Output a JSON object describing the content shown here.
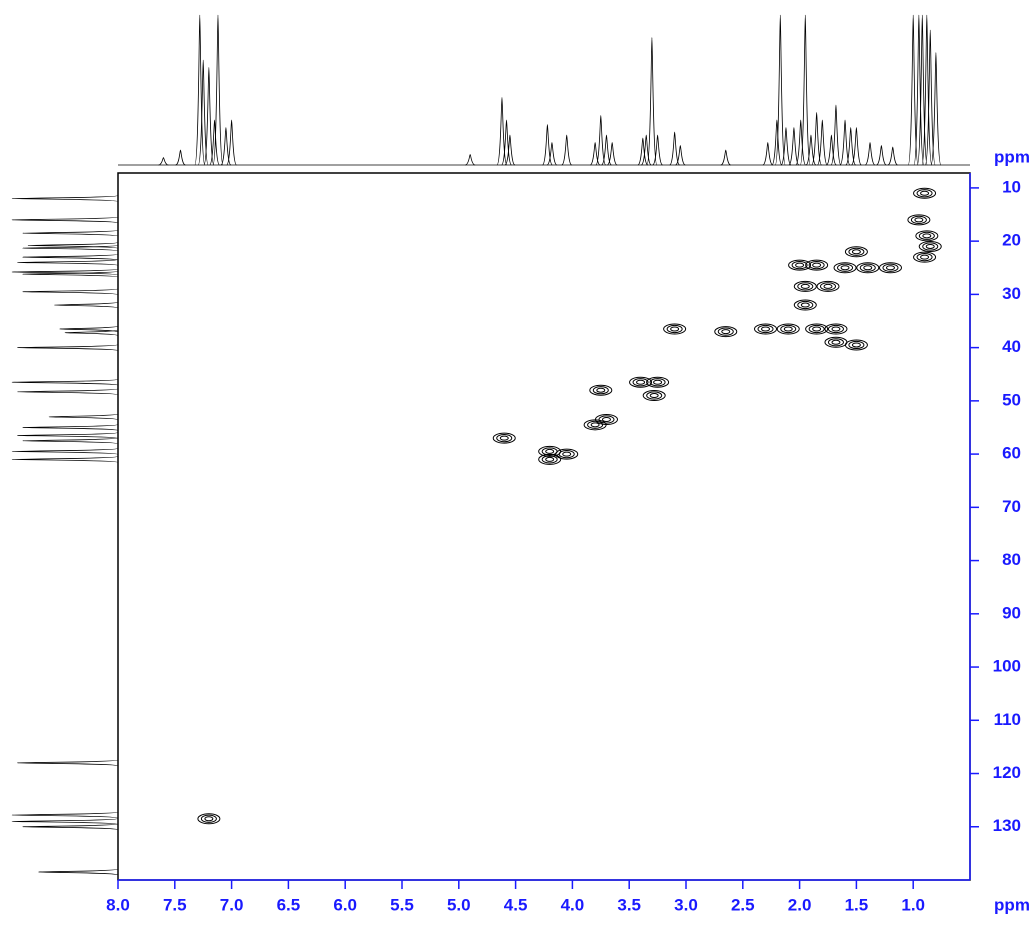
{
  "chart_data": {
    "type": "hsqc",
    "xlabel": "ppm",
    "ylabel": "ppm",
    "xlim": [
      8.0,
      0.5
    ],
    "ylim": [
      7.2,
      140
    ],
    "xticks": [
      {
        "value": 8,
        "label": "8.0"
      },
      7.5,
      {
        "value": 7,
        "label": "7.0"
      },
      6.5,
      {
        "value": 6,
        "label": "6.0"
      },
      5.5,
      {
        "value": 5,
        "label": "5.0"
      },
      4.5,
      {
        "value": 4,
        "label": "4.0"
      },
      3.5,
      {
        "value": 3,
        "label": "3.0"
      },
      2.5,
      {
        "value": 2,
        "label": "2.0"
      },
      1.5,
      {
        "value": 1,
        "label": "1.0"
      }
    ],
    "yticks": [
      10,
      20,
      30,
      40,
      50,
      60,
      70,
      80,
      90,
      100,
      110,
      120,
      130
    ],
    "axis_color": "#1a1aff",
    "peak_color": "#000000",
    "cross_peaks": {
      "x": [
        0.9,
        0.95,
        0.88,
        0.85,
        0.9,
        1.5,
        1.6,
        1.4,
        1.2,
        2.0,
        1.85,
        1.95,
        1.75,
        1.95,
        3.1,
        2.65,
        2.3,
        2.1,
        1.85,
        1.68,
        1.68,
        1.5,
        3.75,
        3.4,
        3.25,
        3.28,
        3.7,
        3.8,
        4.6,
        4.2,
        4.05,
        4.2,
        7.2
      ],
      "values": [
        11,
        16,
        19,
        21,
        23,
        22,
        25,
        25,
        25,
        24.5,
        24.5,
        28.5,
        28.5,
        32,
        36.5,
        37,
        36.5,
        36.5,
        36.5,
        36.5,
        39,
        39.5,
        48,
        46.5,
        46.5,
        49,
        53.5,
        54.5,
        57,
        59.5,
        60,
        61,
        128.5
      ]
    },
    "top_projection": {
      "x": [
        7.6,
        7.45,
        7.28,
        7.25,
        7.2,
        7.15,
        7.12,
        7.05,
        7.0,
        4.9,
        4.62,
        4.58,
        4.55,
        4.22,
        4.18,
        4.05,
        3.8,
        3.75,
        3.7,
        3.65,
        3.38,
        3.35,
        3.3,
        3.25,
        3.1,
        3.05,
        2.65,
        2.28,
        2.2,
        2.17,
        2.12,
        2.05,
        1.99,
        1.95,
        1.9,
        1.85,
        1.8,
        1.72,
        1.68,
        1.6,
        1.55,
        1.5,
        1.38,
        1.28,
        1.18,
        1.0,
        0.95,
        0.92,
        0.88,
        0.85,
        0.8
      ],
      "values": [
        0.05,
        0.1,
        1.0,
        0.7,
        0.65,
        0.3,
        1.0,
        0.25,
        0.3,
        0.07,
        0.45,
        0.3,
        0.2,
        0.27,
        0.15,
        0.2,
        0.15,
        0.33,
        0.2,
        0.15,
        0.18,
        0.2,
        0.85,
        0.2,
        0.22,
        0.13,
        0.1,
        0.15,
        0.3,
        1.0,
        0.25,
        0.25,
        0.3,
        1.0,
        0.2,
        0.35,
        0.3,
        0.2,
        0.4,
        0.3,
        0.25,
        0.25,
        0.15,
        0.13,
        0.12,
        1.0,
        1.0,
        1.0,
        1.0,
        0.9,
        0.75
      ]
    },
    "left_projection": {
      "y": [
        12,
        16,
        18.5,
        20.8,
        21.3,
        23,
        24,
        25.8,
        26.2,
        29.5,
        32,
        36.5,
        37.2,
        40,
        46.5,
        48.3,
        53,
        55,
        56.5,
        57.5,
        59.5,
        61,
        118,
        127.8,
        129,
        130,
        138.5
      ],
      "values": [
        1.0,
        1.0,
        0.9,
        0.85,
        0.9,
        0.9,
        0.95,
        1.0,
        0.9,
        0.9,
        0.6,
        0.55,
        0.5,
        0.95,
        1.0,
        0.95,
        0.65,
        0.9,
        0.95,
        0.9,
        1.0,
        1.0,
        0.95,
        1.0,
        1.0,
        0.9,
        0.75
      ]
    }
  }
}
